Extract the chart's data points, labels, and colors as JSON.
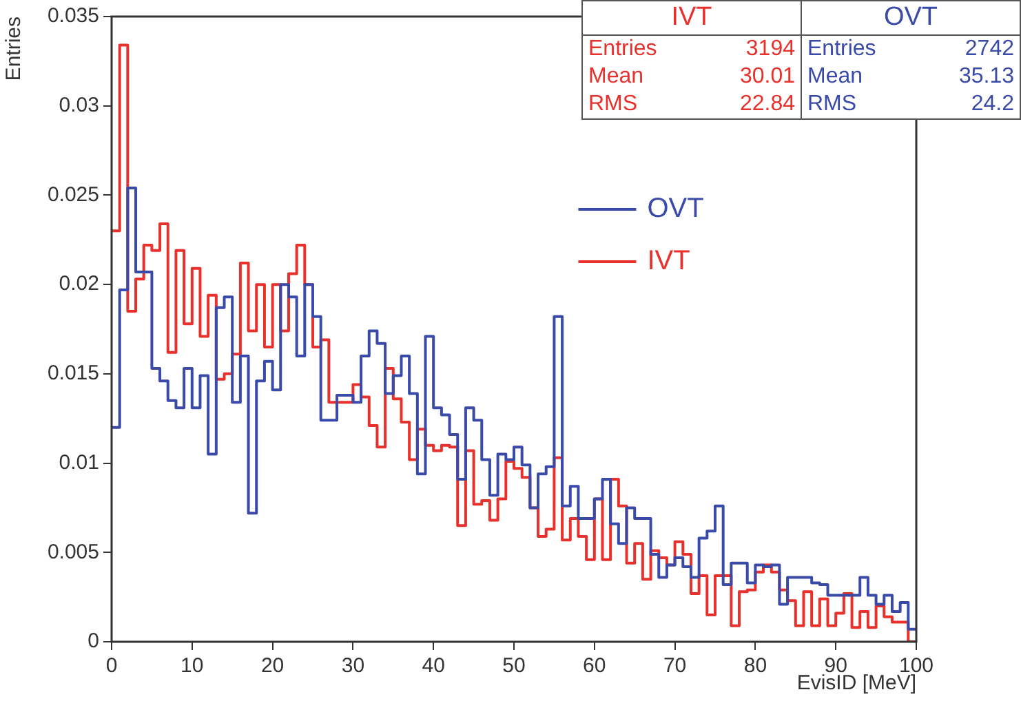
{
  "chart_data": {
    "type": "histogram",
    "xlabel": "EvisID [MeV]",
    "ylabel": "Entries",
    "bins": [
      0,
      1,
      2,
      3,
      4,
      5,
      6,
      7,
      8,
      9,
      10,
      11,
      12,
      13,
      14,
      15,
      16,
      17,
      18,
      19,
      20,
      21,
      22,
      23,
      24,
      25,
      26,
      27,
      28,
      29,
      30,
      31,
      32,
      33,
      34,
      35,
      36,
      37,
      38,
      39,
      40,
      41,
      42,
      43,
      44,
      45,
      46,
      47,
      48,
      49,
      50,
      51,
      52,
      53,
      54,
      55,
      56,
      57,
      58,
      59,
      60,
      61,
      62,
      63,
      64,
      65,
      66,
      67,
      68,
      69,
      70,
      71,
      72,
      73,
      74,
      75,
      76,
      77,
      78,
      79,
      80,
      81,
      82,
      83,
      84,
      85,
      86,
      87,
      88,
      89,
      90,
      91,
      92,
      93,
      94,
      95,
      96,
      97,
      98,
      99,
      100
    ],
    "series": [
      {
        "name": "OVT",
        "color": "#3a4aa8",
        "values": [
          0.012,
          0.0197,
          0.0254,
          0.0207,
          0.0207,
          0.0153,
          0.0146,
          0.0135,
          0.0131,
          0.0153,
          0.0131,
          0.0149,
          0.0105,
          0.0187,
          0.0193,
          0.0134,
          0.016,
          0.0072,
          0.0146,
          0.0157,
          0.0141,
          0.02,
          0.0193,
          0.016,
          0.02,
          0.0182,
          0.0124,
          0.0124,
          0.0138,
          0.0138,
          0.0134,
          0.016,
          0.0174,
          0.0167,
          0.0139,
          0.0149,
          0.016,
          0.0139,
          0.0094,
          0.0171,
          0.0131,
          0.0127,
          0.0116,
          0.0091,
          0.0131,
          0.0124,
          0.0102,
          0.0082,
          0.0105,
          0.0102,
          0.0109,
          0.0099,
          0.0075,
          0.0094,
          0.0098,
          0.0182,
          0.0076,
          0.0087,
          0.0069,
          0.0069,
          0.008,
          0.0091,
          0.0066,
          0.0055,
          0.0075,
          0.0069,
          0.0069,
          0.0049,
          0.0036,
          0.0043,
          0.0047,
          0.0042,
          0.0036,
          0.0058,
          0.0062,
          0.0076,
          0.0032,
          0.0044,
          0.0044,
          0.0033,
          0.0043,
          0.0042,
          0.0043,
          0.0021,
          0.0036,
          0.0036,
          0.0036,
          0.0033,
          0.0032,
          0.0026,
          0.0026,
          0.0026,
          0.0026,
          0.0036,
          0.0026,
          0.0021,
          0.0026,
          0.0017,
          0.0022,
          0.0007
        ]
      },
      {
        "name": "IVT",
        "color": "#e8312c",
        "values": [
          0.023,
          0.0334,
          0.0185,
          0.0203,
          0.0222,
          0.0219,
          0.0234,
          0.0162,
          0.0219,
          0.0178,
          0.0209,
          0.0171,
          0.0194,
          0.0147,
          0.015,
          0.0161,
          0.0212,
          0.0174,
          0.02,
          0.0165,
          0.02,
          0.0174,
          0.0206,
          0.0222,
          0.02,
          0.0165,
          0.0169,
          0.0134,
          0.0134,
          0.0134,
          0.0144,
          0.0137,
          0.0121,
          0.0109,
          0.0153,
          0.0136,
          0.0123,
          0.0102,
          0.0119,
          0.011,
          0.0107,
          0.011,
          0.0109,
          0.0065,
          0.0107,
          0.0077,
          0.0079,
          0.0068,
          0.008,
          0.0101,
          0.0097,
          0.0092,
          0.0075,
          0.0059,
          0.0063,
          0.0103,
          0.0057,
          0.0069,
          0.0059,
          0.0046,
          0.008,
          0.0046,
          0.0091,
          0.0076,
          0.0044,
          0.0055,
          0.0035,
          0.0051,
          0.0047,
          0.0043,
          0.0056,
          0.0049,
          0.0027,
          0.0037,
          0.0015,
          0.0037,
          0.0037,
          0.0009,
          0.0028,
          0.0029,
          0.0039,
          0.0043,
          0.0039,
          0.0029,
          0.0023,
          0.0009,
          0.0028,
          0.0009,
          0.0024,
          0.0009,
          0.0016,
          0.0027,
          0.0008,
          0.0017,
          0.0008,
          0.002,
          0.0014,
          0.0011,
          0.0011,
          0
        ]
      }
    ],
    "xlim": [
      0,
      100
    ],
    "xticks": [
      0,
      10,
      20,
      30,
      40,
      50,
      60,
      70,
      80,
      90,
      100
    ],
    "ylim": [
      0,
      0.035
    ],
    "yticks": [
      0,
      0.005,
      0.01,
      0.015,
      0.02,
      0.025,
      0.03,
      0.035
    ],
    "grid": false,
    "legend": "top right",
    "annotations": [
      "IVT",
      "Entries 3194",
      "Mean 30.01",
      "RMS 22.84",
      "OVT",
      "Entries 2742",
      "Mean 35.13",
      "RMS 24.2"
    ]
  }
}
